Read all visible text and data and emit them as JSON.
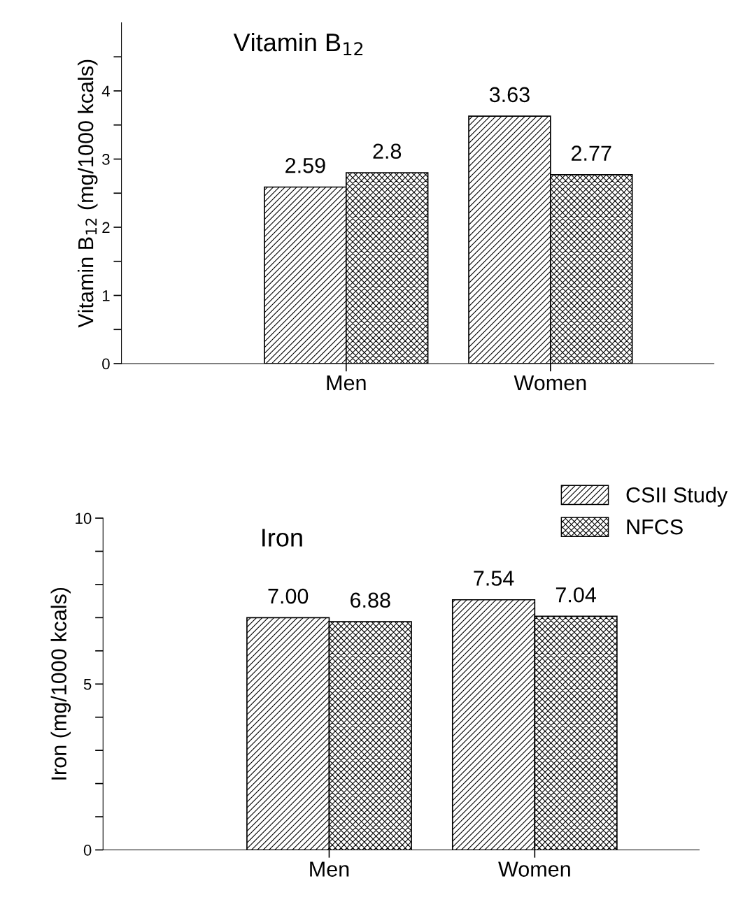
{
  "chart_data": [
    {
      "type": "bar",
      "title": "Vitamin B$_{12}$",
      "ylabel": "Vitamin B$_{12}$ (mg/1000 kcals)",
      "categories": [
        "Men",
        "Women"
      ],
      "series": [
        {
          "color": "#000000",
          "values": [
            2.59,
            3.63
          ],
          "value_labels": [
            "2.59",
            "3.63"
          ]
        },
        {
          "color": "#000000",
          "values": [
            2.8,
            2.77
          ],
          "value_labels": [
            "2.8",
            "2.77"
          ]
        }
      ],
      "ylim": [
        0,
        5
      ],
      "yticks": [
        0,
        {
          "value": 0.5,
          "label": null
        },
        1,
        {
          "value": 1.5,
          "label": null
        },
        2,
        {
          "value": 2.5,
          "label": null
        },
        3,
        {
          "value": 3.5,
          "label": null
        },
        4,
        {
          "value": 4.5,
          "label": null
        }
      ],
      "grid": false
    },
    {
      "type": "bar",
      "title": "Iron",
      "ylabel": "Iron (mg/1000 kcals)",
      "categories": [
        "Men",
        "Women"
      ],
      "series": [
        {
          "name": "CSII Study",
          "color": "#000000",
          "values": [
            7.0,
            7.54
          ],
          "value_labels": [
            "7.00",
            "7.54"
          ]
        },
        {
          "name": "NFCS",
          "color": "#000000",
          "values": [
            6.88,
            7.04
          ],
          "value_labels": [
            "6.88",
            "7.04"
          ]
        }
      ],
      "ylim": [
        0,
        10
      ],
      "yticks": [
        0,
        {
          "value": 1,
          "label": null
        },
        {
          "value": 2,
          "label": null
        },
        {
          "value": 3,
          "label": null
        },
        {
          "value": 4,
          "label": null
        },
        5,
        {
          "value": 6,
          "label": null
        },
        {
          "value": 7,
          "label": null
        },
        {
          "value": 8,
          "label": null
        },
        {
          "value": 9,
          "label": null
        },
        10
      ],
      "grid": false,
      "legend": "top right"
    }
  ]
}
